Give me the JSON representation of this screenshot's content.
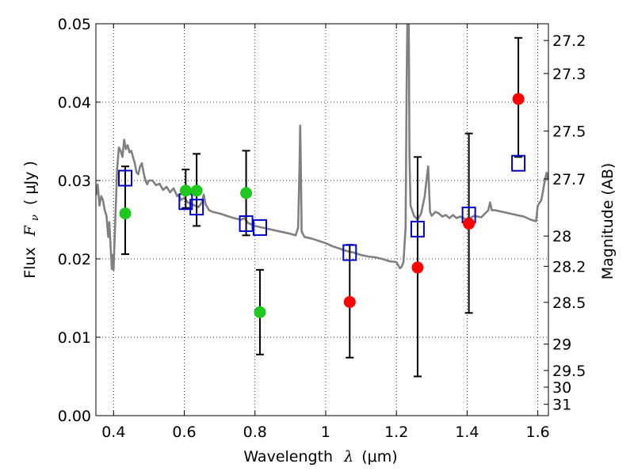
{
  "chart_data": {
    "type": "scatter",
    "xlabel": "Wavelength",
    "xlabel_symbol": "λ",
    "xlabel_unit": "(μm)",
    "ylabel": "Flux",
    "ylabel_symbol": "F",
    "ylabel_subscript": "ν",
    "ylabel_unit": "( μJy )",
    "y2label": "Magnitude (AB)",
    "xlim": [
      0.35,
      1.63
    ],
    "ylim": [
      0.0,
      0.05
    ],
    "x_ticks": [
      0.4,
      0.6,
      0.8,
      1.0,
      1.2,
      1.4,
      1.6
    ],
    "x_tick_labels": [
      "0.4",
      "0.6",
      "0.8",
      "1",
      "1.2",
      "1.4",
      "1.6"
    ],
    "y_ticks": [
      0.0,
      0.01,
      0.02,
      0.03,
      0.04,
      0.05
    ],
    "y_tick_labels": [
      "0.00",
      "0.01",
      "0.02",
      "0.03",
      "0.04",
      "0.05"
    ],
    "y2_tick_labels": [
      "27.2",
      "27.3",
      "27.5",
      "27.7",
      "28",
      "28.2",
      "28.5",
      "29",
      "29.5",
      "30",
      "31"
    ],
    "grid": true,
    "colors": {
      "model": "#808080",
      "green": "#1ec81e",
      "red": "#ff0000",
      "model_box": "#0000cc",
      "error_bar": "#000000"
    },
    "model_spectrum": [
      [
        0.35,
        0.0281
      ],
      [
        0.355,
        0.0295
      ],
      [
        0.36,
        0.0268
      ],
      [
        0.365,
        0.028
      ],
      [
        0.37,
        0.0275
      ],
      [
        0.375,
        0.0262
      ],
      [
        0.38,
        0.0255
      ],
      [
        0.385,
        0.0228
      ],
      [
        0.388,
        0.0247
      ],
      [
        0.39,
        0.023
      ],
      [
        0.395,
        0.0187
      ],
      [
        0.397,
        0.0205
      ],
      [
        0.4,
        0.0186
      ],
      [
        0.405,
        0.025
      ],
      [
        0.41,
        0.0315
      ],
      [
        0.415,
        0.0342
      ],
      [
        0.42,
        0.0338
      ],
      [
        0.425,
        0.033
      ],
      [
        0.43,
        0.0352
      ],
      [
        0.435,
        0.034
      ],
      [
        0.44,
        0.0345
      ],
      [
        0.445,
        0.0336
      ],
      [
        0.45,
        0.0338
      ],
      [
        0.455,
        0.033
      ],
      [
        0.46,
        0.0322
      ],
      [
        0.465,
        0.031
      ],
      [
        0.47,
        0.0308
      ],
      [
        0.475,
        0.0318
      ],
      [
        0.48,
        0.0322
      ],
      [
        0.485,
        0.031
      ],
      [
        0.49,
        0.03
      ],
      [
        0.495,
        0.0295
      ],
      [
        0.5,
        0.03
      ],
      [
        0.51,
        0.03
      ],
      [
        0.52,
        0.0294
      ],
      [
        0.53,
        0.0296
      ],
      [
        0.54,
        0.0288
      ],
      [
        0.55,
        0.0292
      ],
      [
        0.56,
        0.0285
      ],
      [
        0.57,
        0.029
      ],
      [
        0.58,
        0.028
      ],
      [
        0.585,
        0.0282
      ],
      [
        0.59,
        0.0275
      ],
      [
        0.6,
        0.0278
      ],
      [
        0.61,
        0.0272
      ],
      [
        0.62,
        0.027
      ],
      [
        0.63,
        0.0268
      ],
      [
        0.64,
        0.0266
      ],
      [
        0.65,
        0.0272
      ],
      [
        0.655,
        0.0282
      ],
      [
        0.66,
        0.027
      ],
      [
        0.67,
        0.0262
      ],
      [
        0.68,
        0.026
      ],
      [
        0.7,
        0.0258
      ],
      [
        0.72,
        0.0255
      ],
      [
        0.74,
        0.0252
      ],
      [
        0.76,
        0.025
      ],
      [
        0.77,
        0.0252
      ],
      [
        0.78,
        0.0246
      ],
      [
        0.8,
        0.0242
      ],
      [
        0.82,
        0.024
      ],
      [
        0.84,
        0.0238
      ],
      [
        0.86,
        0.0236
      ],
      [
        0.88,
        0.0234
      ],
      [
        0.9,
        0.0232
      ],
      [
        0.915,
        0.023
      ],
      [
        0.922,
        0.024
      ],
      [
        0.926,
        0.032
      ],
      [
        0.928,
        0.037
      ],
      [
        0.93,
        0.031
      ],
      [
        0.932,
        0.0235
      ],
      [
        0.94,
        0.0228
      ],
      [
        0.96,
        0.0226
      ],
      [
        0.98,
        0.0223
      ],
      [
        1.0,
        0.022
      ],
      [
        1.02,
        0.0216
      ],
      [
        1.04,
        0.0213
      ],
      [
        1.06,
        0.021
      ],
      [
        1.08,
        0.0208
      ],
      [
        1.1,
        0.0205
      ],
      [
        1.12,
        0.0203
      ],
      [
        1.14,
        0.0202
      ],
      [
        1.16,
        0.02
      ],
      [
        1.18,
        0.0197
      ],
      [
        1.2,
        0.0196
      ],
      [
        1.21,
        0.0188
      ],
      [
        1.215,
        0.019
      ],
      [
        1.22,
        0.0196
      ],
      [
        1.226,
        0.024
      ],
      [
        1.229,
        0.042
      ],
      [
        1.231,
        0.05
      ],
      [
        1.233,
        0.05
      ],
      [
        1.235,
        0.05
      ],
      [
        1.237,
        0.033
      ],
      [
        1.24,
        0.0268
      ],
      [
        1.25,
        0.0255
      ],
      [
        1.26,
        0.025
      ],
      [
        1.27,
        0.0258
      ],
      [
        1.28,
        0.028
      ],
      [
        1.285,
        0.03
      ],
      [
        1.29,
        0.0318
      ],
      [
        1.295,
        0.026
      ],
      [
        1.3,
        0.0255
      ],
      [
        1.31,
        0.026
      ],
      [
        1.32,
        0.0258
      ],
      [
        1.33,
        0.0254
      ],
      [
        1.34,
        0.0256
      ],
      [
        1.35,
        0.0252
      ],
      [
        1.36,
        0.0256
      ],
      [
        1.37,
        0.0252
      ],
      [
        1.38,
        0.0254
      ],
      [
        1.4,
        0.025
      ],
      [
        1.42,
        0.0255
      ],
      [
        1.44,
        0.0253
      ],
      [
        1.46,
        0.0262
      ],
      [
        1.465,
        0.0272
      ],
      [
        1.47,
        0.0262
      ],
      [
        1.48,
        0.0262
      ],
      [
        1.5,
        0.026
      ],
      [
        1.52,
        0.0258
      ],
      [
        1.54,
        0.0256
      ],
      [
        1.56,
        0.0254
      ],
      [
        1.58,
        0.025
      ],
      [
        1.595,
        0.0248
      ],
      [
        1.6,
        0.0268
      ],
      [
        1.61,
        0.0275
      ],
      [
        1.62,
        0.03
      ],
      [
        1.625,
        0.031
      ],
      [
        1.63,
        0.03
      ]
    ],
    "green_points": [
      {
        "x": 0.433,
        "y": 0.0258,
        "err_low": 0.0206,
        "err_high": 0.0318
      },
      {
        "x": 0.604,
        "y": 0.0287,
        "err_low": 0.0265,
        "err_high": 0.0314
      },
      {
        "x": 0.635,
        "y": 0.0287,
        "err_low": 0.0242,
        "err_high": 0.0334
      },
      {
        "x": 0.775,
        "y": 0.0284,
        "err_low": 0.023,
        "err_high": 0.0338
      },
      {
        "x": 0.814,
        "y": 0.0132,
        "err_low": 0.0078,
        "err_high": 0.0186
      }
    ],
    "red_points": [
      {
        "x": 1.068,
        "y": 0.0145,
        "err_low": 0.0074,
        "err_high": 0.0218
      },
      {
        "x": 1.26,
        "y": 0.0189,
        "err_low": 0.005,
        "err_high": 0.033
      },
      {
        "x": 1.405,
        "y": 0.0245,
        "err_low": 0.0131,
        "err_high": 0.036
      },
      {
        "x": 1.545,
        "y": 0.0404,
        "err_low": 0.033,
        "err_high": 0.0482
      }
    ],
    "model_boxes": [
      {
        "x": 0.433,
        "y": 0.0303
      },
      {
        "x": 0.604,
        "y": 0.0273
      },
      {
        "x": 0.635,
        "y": 0.0266
      },
      {
        "x": 0.775,
        "y": 0.0245
      },
      {
        "x": 0.814,
        "y": 0.024
      },
      {
        "x": 1.068,
        "y": 0.0208
      },
      {
        "x": 1.26,
        "y": 0.0238
      },
      {
        "x": 1.405,
        "y": 0.0256
      },
      {
        "x": 1.545,
        "y": 0.0322
      }
    ]
  }
}
